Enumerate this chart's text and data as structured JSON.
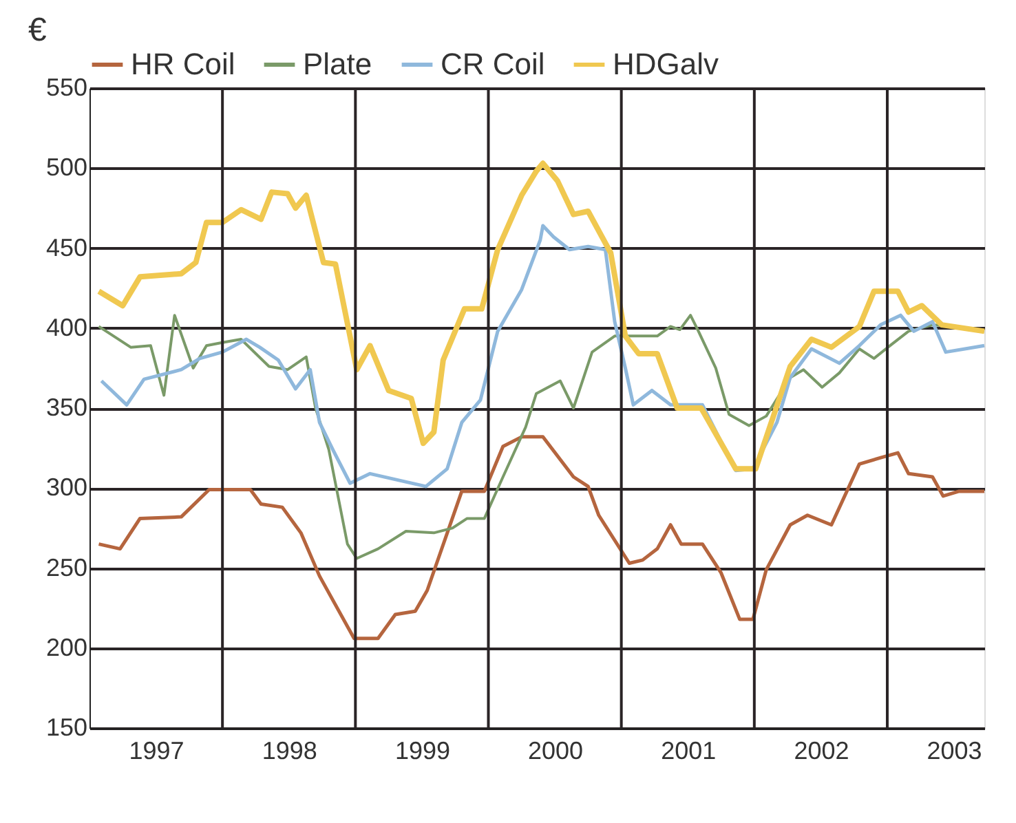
{
  "chart_data": {
    "type": "line",
    "ylabel": "€",
    "legend": "top",
    "grid": "y",
    "line_style": "solid",
    "marker": "none",
    "xlim": [
      1997,
      2003.73
    ],
    "ylim": [
      150,
      550
    ],
    "yticks": [
      150,
      200,
      250,
      300,
      350,
      400,
      450,
      500,
      550
    ],
    "xticks": [
      {
        "value": 1997.5,
        "label": "1997"
      },
      {
        "value": 1998.5,
        "label": "1998"
      },
      {
        "value": 1999.5,
        "label": "1999"
      },
      {
        "value": 2000.5,
        "label": "2000"
      },
      {
        "value": 2001.5,
        "label": "2001"
      },
      {
        "value": 2002.5,
        "label": "2002"
      },
      {
        "value": 2003.5,
        "label": "2003"
      }
    ],
    "ref_lines": [
      {
        "axis": "x",
        "value": 1998,
        "color": "#2a2426"
      },
      {
        "axis": "x",
        "value": 1999,
        "color": "#2a2426"
      },
      {
        "axis": "x",
        "value": 2000,
        "color": "#2a2426"
      },
      {
        "axis": "x",
        "value": 2001,
        "color": "#2a2426"
      },
      {
        "axis": "x",
        "value": 2002,
        "color": "#2a2426"
      },
      {
        "axis": "x",
        "value": 2003,
        "color": "#2a2426"
      }
    ],
    "series": [
      {
        "name": "HR Coil",
        "color": "#b5653e",
        "x": [
          1997.07,
          1997.23,
          1997.38,
          1997.69,
          1997.9,
          1998.21,
          1998.29,
          1998.45,
          1998.59,
          1998.73,
          1998.99,
          1999.17,
          1999.3,
          1999.45,
          1999.54,
          1999.8,
          1999.97,
          2000.11,
          2000.25,
          2000.41,
          2000.64,
          2000.75,
          2000.83,
          2001.06,
          2001.16,
          2001.27,
          2001.37,
          2001.45,
          2001.61,
          2001.75,
          2001.89,
          2001.99,
          2002.09,
          2002.27,
          2002.4,
          2002.58,
          2002.79,
          2002.95,
          2003.08,
          2003.16,
          2003.34,
          2003.42,
          2003.54,
          2003.73
        ],
        "values": [
          265,
          262,
          281,
          282,
          299,
          299,
          290,
          288,
          272,
          245,
          206,
          206,
          221,
          223,
          236,
          298,
          298,
          326,
          332,
          332,
          307,
          301,
          283,
          253,
          255,
          262,
          277,
          265,
          265,
          247,
          218,
          218,
          249,
          277,
          283,
          277,
          315,
          319,
          322,
          309,
          307,
          295,
          298,
          298
        ]
      },
      {
        "name": "Plate",
        "color": "#7a9a68",
        "x": [
          1997.07,
          1997.31,
          1997.46,
          1997.56,
          1997.64,
          1997.78,
          1997.88,
          1998.0,
          1998.14,
          1998.35,
          1998.49,
          1998.63,
          1998.7,
          1998.8,
          1998.94,
          1999.01,
          1999.17,
          1999.38,
          1999.59,
          1999.73,
          1999.84,
          1999.97,
          2000.11,
          2000.28,
          2000.36,
          2000.54,
          2000.64,
          2000.78,
          2000.95,
          2001.13,
          2001.27,
          2001.37,
          2001.44,
          2001.52,
          2001.58,
          2001.71,
          2001.81,
          2001.96,
          2002.09,
          2002.27,
          2002.37,
          2002.51,
          2002.64,
          2002.79,
          2002.9,
          2003.02,
          2003.16,
          2003.34,
          2003.51,
          2003.73
        ],
        "values": [
          401,
          388,
          389,
          358,
          408,
          375,
          389,
          391,
          393,
          376,
          374,
          382,
          350,
          324,
          265,
          256,
          262,
          273,
          272,
          275,
          281,
          281,
          307,
          338,
          359,
          367,
          350,
          385,
          395,
          395,
          395,
          401,
          399,
          408,
          398,
          375,
          346,
          339,
          345,
          369,
          374,
          363,
          372,
          387,
          381,
          389,
          398,
          402,
          401,
          398
        ]
      },
      {
        "name": "CR Coil",
        "color": "#8fb8dc",
        "x": [
          1997.09,
          1997.28,
          1997.41,
          1997.69,
          1997.83,
          1998.0,
          1998.18,
          1998.28,
          1998.42,
          1998.55,
          1998.66,
          1998.73,
          1998.83,
          1998.96,
          1999.11,
          1999.32,
          1999.53,
          1999.69,
          1999.8,
          1999.94,
          2000.07,
          2000.25,
          2000.39,
          2000.41,
          2000.49,
          2000.61,
          2000.75,
          2000.88,
          2000.95,
          2001.03,
          2001.09,
          2001.23,
          2001.37,
          2001.61,
          2001.86,
          2001.99,
          2002.17,
          2002.27,
          2002.43,
          2002.64,
          2002.79,
          2002.95,
          2003.1,
          2003.2,
          2003.34,
          2003.44,
          2003.73
        ],
        "values": [
          367,
          352,
          368,
          374,
          381,
          385,
          393,
          388,
          380,
          362,
          374,
          341,
          324,
          303,
          309,
          305,
          301,
          312,
          341,
          355,
          398,
          424,
          455,
          464,
          457,
          449,
          451,
          449,
          404,
          375,
          352,
          361,
          352,
          352,
          311,
          312,
          341,
          369,
          387,
          378,
          389,
          402,
          408,
          398,
          404,
          385,
          389
        ]
      },
      {
        "name": "HDGalv",
        "color": "#f0c850",
        "x": [
          1997.07,
          1997.25,
          1997.38,
          1997.69,
          1997.8,
          1997.88,
          1998.0,
          1998.14,
          1998.29,
          1998.37,
          1998.49,
          1998.55,
          1998.63,
          1998.76,
          1998.85,
          1999.01,
          1999.11,
          1999.25,
          1999.42,
          1999.51,
          1999.59,
          1999.66,
          1999.82,
          1999.95,
          2000.07,
          2000.25,
          2000.36,
          2000.41,
          2000.52,
          2000.64,
          2000.75,
          2000.92,
          2001.03,
          2001.13,
          2001.27,
          2001.42,
          2001.6,
          2001.86,
          2002.01,
          2002.27,
          2002.43,
          2002.58,
          2002.79,
          2002.9,
          2003.08,
          2003.16,
          2003.26,
          2003.41,
          2003.73
        ],
        "values": [
          423,
          414,
          432,
          434,
          441,
          466,
          466,
          474,
          468,
          485,
          484,
          475,
          483,
          441,
          440,
          374,
          389,
          361,
          356,
          328,
          335,
          380,
          412,
          412,
          449,
          483,
          498,
          503,
          492,
          471,
          473,
          447,
          395,
          384,
          384,
          350,
          350,
          312,
          312,
          376,
          393,
          388,
          401,
          423,
          423,
          410,
          414,
          402,
          398
        ]
      }
    ]
  }
}
